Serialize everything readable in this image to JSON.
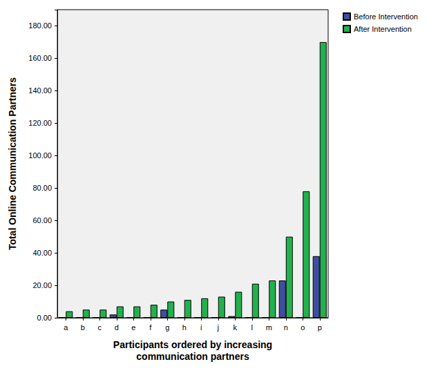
{
  "chart_data": {
    "type": "bar",
    "x_label": "Participants ordered by increasing\ncommunication partners",
    "y_label": "Total Online Communication Partners",
    "categories": [
      "a",
      "b",
      "c",
      "d",
      "e",
      "f",
      "g",
      "h",
      "i",
      "j",
      "k",
      "l",
      "m",
      "n",
      "o",
      "p"
    ],
    "series": [
      {
        "name": "Before Intervention",
        "color": "#3e4f9e",
        "values": [
          0,
          0,
          0,
          2,
          0,
          0,
          5,
          0,
          0,
          0,
          1,
          0,
          0,
          23,
          0,
          38
        ]
      },
      {
        "name": "After Intervention",
        "color": "#22b14c",
        "values": [
          4,
          5,
          5,
          7,
          7,
          8,
          10,
          11,
          12,
          13,
          16,
          21,
          23,
          50,
          78,
          170
        ]
      }
    ],
    "ylim": [
      0,
      190
    ],
    "yticks": [
      {
        "value": 0,
        "label": "0.00"
      },
      {
        "value": 20,
        "label": "20.00"
      },
      {
        "value": 40,
        "label": "40.00"
      },
      {
        "value": 60,
        "label": "60.00"
      },
      {
        "value": 80,
        "label": "80.00"
      },
      {
        "value": 100,
        "label": "100.00"
      },
      {
        "value": 120,
        "label": "120.00"
      },
      {
        "value": 140,
        "label": "140.00"
      },
      {
        "value": 160,
        "label": "160.00"
      },
      {
        "value": 180,
        "label": "180.00"
      }
    ],
    "grid": false,
    "legend": "top-right"
  }
}
